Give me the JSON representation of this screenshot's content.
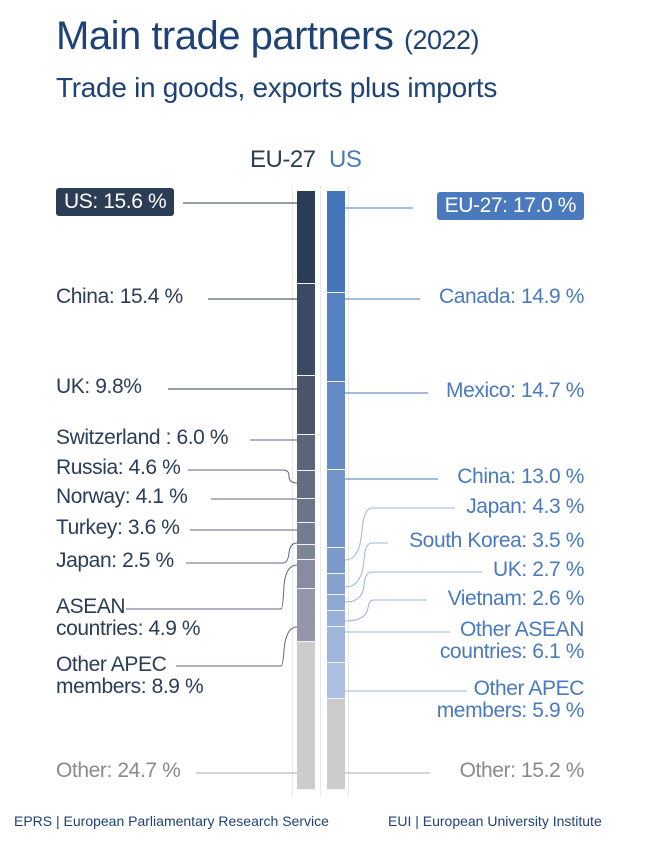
{
  "header": {
    "title": "Main trade partners",
    "year": "(2022)",
    "subtitle": "Trade in goods, exports plus imports"
  },
  "columns": {
    "eu": "EU-27",
    "us": "US"
  },
  "colors": {
    "title": "#1e4275",
    "eu_accent": "#2b3d55",
    "us_accent": "#4a7abd",
    "other": "#cccccc"
  },
  "eu_labels": {
    "us": "US: 15.6 %",
    "china": "China: 15.4 %",
    "uk": "UK: 9.8%",
    "switzerland": "Switzerland : 6.0 %",
    "russia": "Russia: 4.6 %",
    "norway": "Norway: 4.1 %",
    "turkey": "Turkey: 3.6 %",
    "japan": "Japan: 2.5 %",
    "asean_1": "ASEAN",
    "asean_2": "countries: 4.9 %",
    "apec_1": "Other APEC",
    "apec_2": "members: 8.9 %",
    "other": "Other: 24.7 %"
  },
  "us_labels": {
    "eu": "EU-27: 17.0 %",
    "canada": "Canada: 14.9 %",
    "mexico": "Mexico: 14.7 %",
    "china": "China: 13.0 %",
    "japan": "Japan: 4.3 %",
    "korea": "South Korea: 3.5 %",
    "uk": "UK: 2.7 %",
    "vietnam": "Vietnam: 2.6 %",
    "asean_1": "Other ASEAN",
    "asean_2": "countries: 6.1 %",
    "apec_1": "Other APEC",
    "apec_2": "members: 5.9 %",
    "other": "Other: 15.2 %"
  },
  "footer": {
    "left": "EPRS | European Parliamentary Research Service",
    "right": "EUI | European University Institute"
  },
  "chart_data": {
    "type": "bar",
    "subtype": "stacked-100",
    "title": "Main trade partners (2022)",
    "subtitle": "Trade in goods, exports plus imports",
    "categories": [
      "EU-27",
      "US"
    ],
    "series": [
      {
        "name": "EU-27",
        "partners": [
          "US",
          "China",
          "UK",
          "Switzerland",
          "Russia",
          "Norway",
          "Turkey",
          "Japan",
          "ASEAN countries",
          "Other APEC members",
          "Other"
        ],
        "values": [
          15.6,
          15.4,
          9.8,
          6.0,
          4.6,
          4.1,
          3.6,
          2.5,
          4.9,
          8.9,
          24.7
        ],
        "colors": [
          "#2b3d55",
          "#3a4a62",
          "#4b566d",
          "#5b6478",
          "#646c80",
          "#6c7488",
          "#757c8f",
          "#7e8597",
          "#878ca0",
          "#9296a8",
          "#cccccc"
        ]
      },
      {
        "name": "US",
        "partners": [
          "EU-27",
          "Canada",
          "Mexico",
          "China",
          "Japan",
          "South Korea",
          "UK",
          "Vietnam",
          "Other ASEAN countries",
          "Other APEC members",
          "Other"
        ],
        "values": [
          17.0,
          14.9,
          14.7,
          13.0,
          4.3,
          3.5,
          2.7,
          2.6,
          6.1,
          5.9,
          15.2
        ],
        "colors": [
          "#4676b8",
          "#5583c1",
          "#6589c5",
          "#7493c9",
          "#7c99cc",
          "#86a0d0",
          "#8fa7d4",
          "#98afd7",
          "#a1b5db",
          "#adbfe0",
          "#cccccc"
        ]
      }
    ],
    "unit": "%",
    "ylim": [
      0,
      100
    ],
    "legend": "inline labels with leader lines",
    "source": [
      "EPRS | European Parliamentary Research Service",
      "EUI | European University Institute"
    ]
  }
}
